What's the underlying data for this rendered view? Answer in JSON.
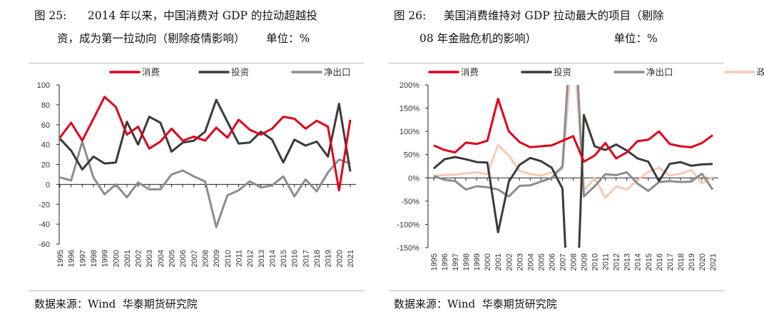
{
  "charts_meta": [
    {
      "title_line1": "图 25:      2014 年以来，中国消费对 GDP 的拉动超越投",
      "title_line2": "资，成为第一拉动向（剔除疫情影响）      单位：%",
      "source": "数据来源：Wind  华泰期货研究院"
    },
    {
      "title_line1": "图 26:     美国消费维持对 GDP 拉动最大的项目（剔除",
      "title_line2": "08 年金融危机的影响）                      单位：%",
      "source": "数据来源：Wind  华泰期货研究院"
    }
  ],
  "chart_data": [
    {
      "type": "line",
      "categories": [
        "1995",
        "1996",
        "1997",
        "1998",
        "1999",
        "2000",
        "2001",
        "2002",
        "2003",
        "2004",
        "2005",
        "2006",
        "2007",
        "2008",
        "2009",
        "2010",
        "2011",
        "2012",
        "2013",
        "2014",
        "2015",
        "2016",
        "2017",
        "2018",
        "2019",
        "2020",
        "2021"
      ],
      "ylim": [
        -60,
        100
      ],
      "yticks": [
        "100",
        "80",
        "60",
        "40",
        "20",
        "0",
        "-20",
        "-40",
        "-60"
      ],
      "ytick_values": [
        100,
        80,
        60,
        40,
        20,
        0,
        -20,
        -40,
        -60
      ],
      "legend_placement": "top",
      "grid": false,
      "series": [
        {
          "name": "消费",
          "color": "#e0001b",
          "values": [
            47,
            62,
            44,
            66,
            88,
            78,
            50,
            58,
            36,
            43,
            56,
            44,
            48,
            44,
            57,
            47,
            65,
            55,
            50,
            56,
            68,
            66,
            56,
            64,
            58,
            -6,
            65
          ]
        },
        {
          "name": "投资",
          "color": "#3a3a3a",
          "values": [
            46,
            34,
            15,
            28,
            21,
            22,
            63,
            40,
            68,
            62,
            33,
            42,
            44,
            53,
            85,
            63,
            41,
            42,
            53,
            45,
            22,
            45,
            39,
            43,
            28,
            81,
            13
          ]
        },
        {
          "name": "净出口",
          "color": "#8c8c8c",
          "values": [
            7,
            4,
            43,
            7,
            -10,
            0,
            -13,
            2,
            -5,
            -5,
            10,
            14,
            8,
            3,
            -43,
            -11,
            -6,
            3,
            -3,
            -1,
            8,
            -12,
            5,
            -7,
            12,
            25,
            21
          ]
        }
      ]
    },
    {
      "type": "line",
      "categories": [
        "1995",
        "1996",
        "1997",
        "1998",
        "1999",
        "2000",
        "2001",
        "2002",
        "2003",
        "2004",
        "2005",
        "2006",
        "2007",
        "2008",
        "2009",
        "2010",
        "2011",
        "2012",
        "2013",
        "2014",
        "2015",
        "2016",
        "2017",
        "2018",
        "2019",
        "2020",
        "2021"
      ],
      "ylim": [
        -150,
        200
      ],
      "yticks": [
        "200%",
        "150%",
        "100%",
        "50%",
        "0%",
        "-50%",
        "-100%",
        "-150%"
      ],
      "ytick_values": [
        200,
        150,
        100,
        50,
        0,
        -50,
        -100,
        -150
      ],
      "legend_placement": "top",
      "grid": false,
      "series": [
        {
          "name": "消费",
          "color": "#e0001b",
          "values": [
            70,
            60,
            55,
            76,
            73,
            80,
            170,
            100,
            77,
            66,
            68,
            70,
            80,
            90,
            35,
            48,
            75,
            42,
            55,
            79,
            82,
            100,
            73,
            68,
            66,
            75,
            92
          ]
        },
        {
          "name": "投资",
          "color": "#3a3a3a",
          "values": [
            20,
            40,
            45,
            40,
            34,
            33,
            -117,
            -8,
            28,
            43,
            36,
            22,
            -23,
            -500,
            135,
            68,
            60,
            72,
            59,
            42,
            35,
            -7,
            30,
            34,
            26,
            29,
            30
          ]
        },
        {
          "name": "净出口",
          "color": "#8c8c8c",
          "values": [
            4,
            -4,
            -7,
            -25,
            -18,
            -20,
            -25,
            -40,
            -17,
            -16,
            -8,
            0,
            25,
            400,
            -40,
            -18,
            8,
            6,
            12,
            -12,
            -28,
            -9,
            -7,
            -9,
            -8,
            9,
            -25
          ]
        },
        {
          "name": "政府部门",
          "color": "#f7c9b3",
          "values": [
            5,
            6,
            7,
            10,
            12,
            8,
            71,
            48,
            15,
            8,
            5,
            12,
            18,
            300,
            -27,
            0,
            -43,
            -18,
            -25,
            -5,
            13,
            22,
            5,
            9,
            17,
            -12,
            2
          ]
        }
      ]
    }
  ]
}
